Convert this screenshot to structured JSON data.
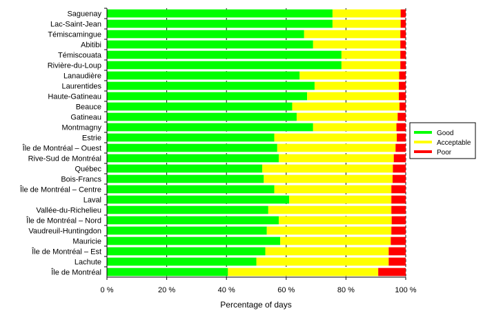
{
  "chart_data": {
    "type": "bar",
    "orientation": "horizontal",
    "stacked": true,
    "categories": [
      "Saguenay",
      "Lac-Saint-Jean",
      "Témiscamingue",
      "Abitibi",
      "Témiscouata",
      "Rivière-du-Loup",
      "Lanaudière",
      "Laurentides",
      "Haute-Gatineau",
      "Beauce",
      "Gatineau",
      "Montmagny",
      "Estrie",
      "Île de Montréal – Ouest",
      "Rive-Sud de Montréal",
      "Québec",
      "Bois-Francs",
      "Île de Montréal – Centre",
      "Laval",
      "Vallée-du-Richelieu",
      "Île de Montréal – Nord",
      "Vaudreuil-Huntingdon",
      "Mauricie",
      "Île de Montréal – Est",
      "Lachute",
      "Île de Montréal"
    ],
    "series": [
      {
        "name": "Good",
        "color": "#00ff00",
        "values": [
          75.5,
          75.5,
          66,
          69,
          78.5,
          78.5,
          64.5,
          69.5,
          67,
          62,
          63.5,
          69,
          56,
          57,
          57.5,
          52,
          52.5,
          56,
          61,
          54,
          57.5,
          53.5,
          58,
          53,
          50,
          40.5
        ]
      },
      {
        "name": "Acceptable",
        "color": "#ffff00",
        "values": [
          22.8,
          22.8,
          32.2,
          29.2,
          19.7,
          19.7,
          33.3,
          28.2,
          30.7,
          35.9,
          33.8,
          27.9,
          41,
          39.6,
          38.5,
          43.7,
          43.1,
          39.2,
          34.2,
          41.2,
          37.8,
          41.7,
          37,
          41.3,
          44.3,
          50.3
        ]
      },
      {
        "name": "Poor",
        "color": "#ff0000",
        "values": [
          1.7,
          1.7,
          1.8,
          1.8,
          1.8,
          1.8,
          2.2,
          2.3,
          2.3,
          2.1,
          2.7,
          3.1,
          3,
          3.4,
          4,
          4.3,
          4.4,
          4.8,
          4.8,
          4.8,
          4.7,
          4.8,
          5,
          5.7,
          5.7,
          9.2
        ]
      }
    ],
    "xlim": [
      0,
      100
    ],
    "xticks": [
      0,
      20,
      40,
      60,
      80,
      100
    ],
    "xtick_labels": [
      "0 %",
      "20 %",
      "40 %",
      "60 %",
      "80 %",
      "100 %"
    ],
    "xlabel": "Percentage of days",
    "ylabel": "",
    "title": "",
    "grid": "vertical dashed",
    "legend": {
      "placement": "right",
      "entries": [
        "Good",
        "Acceptable",
        "Poor"
      ]
    }
  }
}
